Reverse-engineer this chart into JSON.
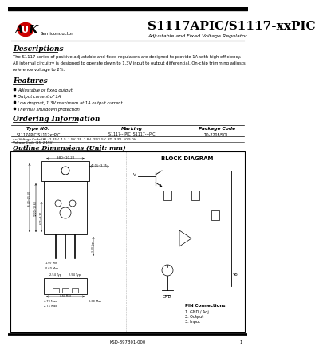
{
  "title": "S1117APIC/S1117-xxPIC",
  "subtitle": "Adjustable and Fixed Voltage Regulator",
  "company_a": "A",
  "company_k": "K",
  "company_sub": "Semiconductor",
  "desc_title": "Descriptions",
  "desc_lines": [
    "The S1117 series of positive adjustable and fixed regulators are designed to provide 1A with high efficiency.",
    "All internal circuitry is designed to operate down to 1.3V input to output differential. On-chip trimming adjusts",
    "reference voltage to 2%."
  ],
  "feat_title": "Features",
  "features": [
    "Adjustable or fixed output",
    "Output current of 1A",
    "Low dropout, 1.3V maximum at 1A output current",
    "Thermal shutdown protection"
  ],
  "order_title": "Ordering Information",
  "order_h1": "Type NO.",
  "order_h2": "Marking",
  "order_h3": "Package Code",
  "order_r1c1": "S1117APIC/S1117xxPIC",
  "order_r1c2": "S1117---PIC  S1117---PIC",
  "order_r1c3": "TO-220F/SOL",
  "order_r2": "xx: Voltage Code (A) : 1.25V, 1.5, 1.5V, 1R, 1.8V, 25/2.5V, 3T, 3.3V, 50/5.0V",
  "order_r3": "Voltage Code (15, 2.15V)",
  "outline_title": "Outline Dimensions (Unit: mm)",
  "block_title": "BLOCK DIAGRAM",
  "dim_w": "9.80~10.20",
  "dim_tab": "43.05~3.35",
  "dim_h1": "15.40~15.60",
  "dim_h2": "12.20~13.60",
  "dim_h3": "6.15~9.30",
  "dim_typ": "3.00 Typ",
  "dim_lead1": "1.07 Min",
  "dim_lead2": "0.60 Max",
  "dim_pin1": "2.54 Typ",
  "dim_pin2": "2.54 Typ",
  "dim_bot1": "4.70 Max",
  "dim_bot2": "2.75 Max",
  "dim_bot3": "0.60 Max",
  "pin_title": "PIN Connections",
  "pin1": "1. GND / Adj",
  "pin2": "2. Output",
  "pin3": "3. Input",
  "footer_code": "KSD-B97B01-000",
  "footer_num": "1",
  "logo_color": "#cc0000",
  "bg": "#ffffff"
}
